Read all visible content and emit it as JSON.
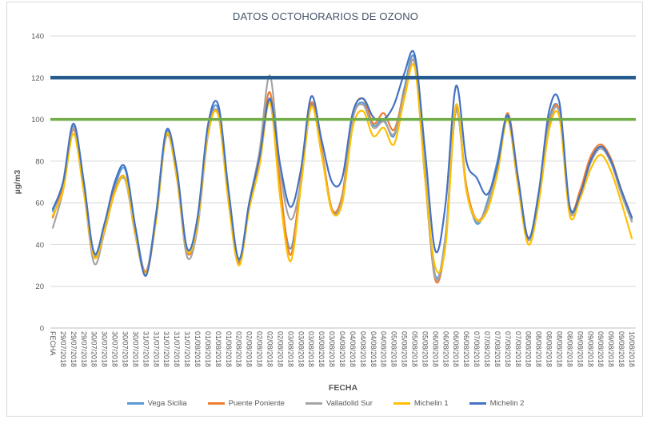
{
  "chart_data": {
    "type": "line",
    "title": "DATOS OCTOHORARIOS DE OZONO",
    "xlabel": "FECHA",
    "ylabel": "µg/m3",
    "ylim": [
      0,
      140
    ],
    "y_ticks": [
      0,
      20,
      40,
      60,
      80,
      100,
      120,
      140
    ],
    "grid": true,
    "legend_position": "bottom",
    "x_labels": [
      "FECHA",
      "29/07/2018",
      "29/07/2018",
      "29/07/2018",
      "30/07/2018",
      "30/07/2018",
      "30/07/2018",
      "30/07/2018",
      "30/07/2018",
      "31/07/2018",
      "31/07/2018",
      "31/07/2018",
      "31/07/2018",
      "31/07/2018",
      "01/08/2018",
      "01/08/2018",
      "01/08/2018",
      "01/08/2018",
      "02/08/2018",
      "02/08/2018",
      "02/08/2018",
      "02/08/2018",
      "02/08/2018",
      "03/08/2018",
      "03/08/2018",
      "03/08/2018",
      "03/08/2018",
      "03/08/2018",
      "04/08/2018",
      "04/08/2018",
      "04/08/2018",
      "04/08/2018",
      "04/08/2018",
      "05/08/2018",
      "05/08/2018",
      "05/08/2018",
      "05/08/2018",
      "06/08/2018",
      "06/08/2018",
      "06/08/2018",
      "06/08/2018",
      "07/08/2018",
      "07/08/2018",
      "07/08/2018",
      "07/08/2018",
      "07/08/2018",
      "08/08/2018",
      "08/08/2018",
      "08/08/2018",
      "08/08/2018",
      "08/08/2018",
      "09/08/2018",
      "09/08/2018",
      "09/08/2018",
      "09/08/2018",
      "09/08/2018",
      "10/08/2018"
    ],
    "series": [
      {
        "name": "Vega Sicilia",
        "color": "#5B9BD5",
        "values": [
          56,
          70,
          97,
          70,
          35,
          50,
          68,
          76,
          48,
          27,
          55,
          94,
          75,
          38,
          52,
          95,
          105,
          65,
          32,
          60,
          80,
          109,
          65,
          38,
          70,
          107,
          85,
          57,
          62,
          100,
          108,
          97,
          100,
          92,
          115,
          129,
          75,
          25,
          45,
          106,
          68,
          50,
          60,
          80,
          101,
          70,
          43,
          65,
          100,
          104,
          58,
          65,
          80,
          87,
          80,
          65,
          52
        ]
      },
      {
        "name": "Puente Poniente",
        "color": "#ED7D31",
        "values": [
          53,
          68,
          95,
          68,
          34,
          48,
          66,
          72,
          45,
          27,
          52,
          93,
          72,
          36,
          50,
          93,
          103,
          62,
          31,
          58,
          82,
          113,
          68,
          35,
          72,
          108,
          86,
          57,
          64,
          102,
          110,
          98,
          103,
          95,
          113,
          127,
          72,
          23,
          42,
          105,
          68,
          52,
          58,
          75,
          103,
          72,
          43,
          63,
          98,
          104,
          57,
          66,
          82,
          88,
          81,
          66,
          53
        ]
      },
      {
        "name": "Valladolid Sur",
        "color": "#A5A5A5",
        "values": [
          48,
          66,
          96,
          66,
          31,
          46,
          65,
          71,
          44,
          26,
          52,
          92,
          72,
          34,
          48,
          92,
          103,
          62,
          30,
          60,
          85,
          121,
          75,
          52,
          70,
          106,
          84,
          56,
          62,
          100,
          107,
          96,
          99,
          93,
          112,
          127,
          73,
          24,
          44,
          104,
          66,
          51,
          58,
          76,
          100,
          68,
          42,
          62,
          97,
          103,
          56,
          64,
          79,
          86,
          79,
          64,
          51
        ]
      },
      {
        "name": "Michelin 1",
        "color": "#FFC000",
        "values": [
          54,
          66,
          93,
          65,
          34,
          47,
          65,
          72,
          45,
          26,
          52,
          93,
          72,
          37,
          50,
          93,
          102,
          60,
          30,
          57,
          78,
          108,
          62,
          32,
          68,
          106,
          83,
          56,
          60,
          96,
          104,
          92,
          96,
          88,
          110,
          125,
          72,
          29,
          40,
          107,
          66,
          52,
          56,
          74,
          100,
          68,
          40,
          60,
          95,
          101,
          54,
          62,
          76,
          83,
          75,
          60,
          43
        ]
      },
      {
        "name": "Michelin 2",
        "color": "#4472C4",
        "values": [
          57,
          70,
          98,
          70,
          36,
          50,
          70,
          77,
          48,
          25,
          55,
          95,
          76,
          38,
          53,
          97,
          107,
          66,
          33,
          60,
          82,
          110,
          78,
          58,
          76,
          111,
          90,
          70,
          72,
          103,
          110,
          101,
          100,
          107,
          122,
          131,
          85,
          37,
          60,
          116,
          80,
          72,
          64,
          78,
          102,
          72,
          43,
          65,
          104,
          108,
          58,
          64,
          80,
          87,
          80,
          66,
          53
        ]
      }
    ],
    "reference_lines": [
      {
        "value": 120,
        "color": "#275D8E",
        "stroke_width": 4.5
      },
      {
        "value": 100,
        "color": "#70AD47",
        "stroke_width": 3.5
      }
    ]
  },
  "colors": {
    "gridline": "#D9D9D9",
    "axis_line": "#BFBFBF",
    "tick_text": "#595959",
    "title_text": "#44546A",
    "background": "#FFFFFF",
    "frame_border": "#D9D9D9"
  }
}
